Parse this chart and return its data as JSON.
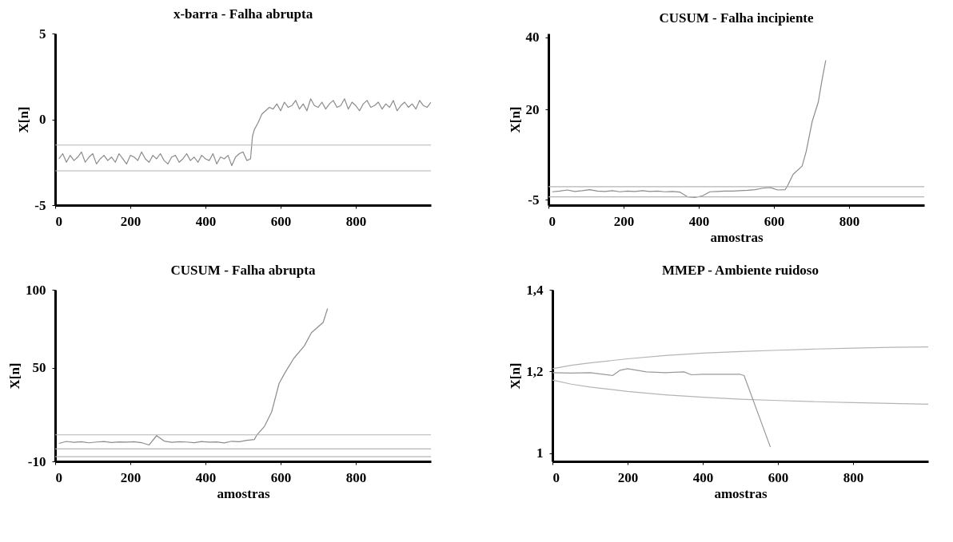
{
  "chart_data": [
    {
      "type": "line",
      "title": "x-barra - Falha abrupta",
      "ylabel": "X[n]",
      "xlim": [
        0,
        1000
      ],
      "xticks": [
        0,
        200,
        400,
        600,
        800
      ],
      "ylim": [
        -5,
        5
      ],
      "yticks": [
        -5,
        0,
        5
      ],
      "series": [
        {
          "color": "#8c8c8c",
          "x": [
            10,
            20,
            30,
            40,
            50,
            60,
            70,
            80,
            90,
            100,
            110,
            120,
            130,
            140,
            150,
            160,
            170,
            180,
            190,
            200,
            210,
            220,
            230,
            240,
            250,
            260,
            270,
            280,
            290,
            300,
            310,
            320,
            330,
            340,
            350,
            360,
            370,
            380,
            390,
            400,
            410,
            420,
            430,
            440,
            450,
            460,
            470,
            480,
            490,
            500,
            510,
            520,
            525,
            530,
            540,
            550,
            560,
            570,
            580,
            590,
            600,
            610,
            620,
            630,
            640,
            650,
            660,
            670,
            680,
            690,
            700,
            710,
            720,
            730,
            740,
            750,
            760,
            770,
            780,
            790,
            800,
            810,
            820,
            830,
            840,
            850,
            860,
            870,
            880,
            890,
            900,
            910,
            920,
            930,
            940,
            950,
            960,
            970,
            980,
            990,
            1000
          ],
          "values": [
            -2.3,
            -2.0,
            -2.5,
            -2.1,
            -2.4,
            -2.2,
            -1.9,
            -2.5,
            -2.2,
            -2.0,
            -2.6,
            -2.3,
            -2.1,
            -2.4,
            -2.2,
            -2.5,
            -2.0,
            -2.3,
            -2.6,
            -2.1,
            -2.2,
            -2.4,
            -1.9,
            -2.3,
            -2.5,
            -2.1,
            -2.3,
            -2.0,
            -2.4,
            -2.6,
            -2.2,
            -2.1,
            -2.5,
            -2.3,
            -2.0,
            -2.4,
            -2.2,
            -2.5,
            -2.1,
            -2.3,
            -2.4,
            -2.0,
            -2.6,
            -2.2,
            -2.3,
            -2.1,
            -2.7,
            -2.2,
            -2.0,
            -1.9,
            -2.4,
            -2.3,
            -1.0,
            -0.6,
            -0.2,
            0.3,
            0.5,
            0.7,
            0.6,
            0.9,
            0.5,
            1.0,
            0.7,
            0.8,
            1.1,
            0.6,
            0.9,
            0.5,
            1.2,
            0.8,
            0.7,
            1.0,
            0.6,
            0.9,
            1.1,
            0.7,
            0.8,
            1.2,
            0.6,
            1.0,
            0.8,
            0.5,
            0.9,
            1.1,
            0.7,
            0.8,
            1.0,
            0.6,
            0.9,
            0.7,
            1.1,
            0.5,
            0.8,
            1.0,
            0.7,
            0.9,
            0.6,
            1.1,
            0.8,
            0.7,
            1.0
          ]
        }
      ],
      "ref_lines": [
        {
          "axis": "y",
          "value": -1.5,
          "color": "#b4b4b4"
        },
        {
          "axis": "y",
          "value": -3.0,
          "color": "#b4b4b4"
        }
      ]
    },
    {
      "type": "line",
      "title": "CUSUM - Falha incipiente",
      "xlabel": "amostras",
      "ylabel": "X[n]",
      "xlim": [
        0,
        1000
      ],
      "xticks": [
        0,
        200,
        400,
        600,
        800
      ],
      "ylim": [
        -6.5,
        41
      ],
      "yticks": [
        -5,
        20,
        40
      ],
      "series": [
        {
          "color": "#8c8c8c",
          "x": [
            10,
            30,
            50,
            70,
            90,
            110,
            130,
            150,
            170,
            190,
            210,
            230,
            250,
            270,
            290,
            310,
            330,
            350,
            370,
            390,
            410,
            430,
            450,
            470,
            490,
            510,
            530,
            550,
            570,
            590,
            610,
            630,
            635,
            651,
            675,
            686,
            702,
            718,
            729,
            738
          ],
          "values": [
            -2.8,
            -2.6,
            -2.3,
            -2.7,
            -2.5,
            -2.2,
            -2.6,
            -2.7,
            -2.5,
            -2.8,
            -2.6,
            -2.7,
            -2.5,
            -2.7,
            -2.6,
            -2.8,
            -2.7,
            -2.9,
            -4.2,
            -4.4,
            -3.9,
            -2.8,
            -2.7,
            -2.6,
            -2.6,
            -2.5,
            -2.4,
            -2.2,
            -1.8,
            -1.6,
            -2.3,
            -2.2,
            -1.4,
            2.0,
            4.3,
            8.4,
            16.7,
            22,
            28.7,
            33.6
          ]
        }
      ],
      "ref_lines": [
        {
          "axis": "y",
          "value": -1.4,
          "color": "#b4b4b4"
        },
        {
          "axis": "y",
          "value": -4.2,
          "color": "#b4b4b4"
        }
      ]
    },
    {
      "type": "line",
      "title": "CUSUM - Falha abrupta",
      "xlabel": "amostras",
      "ylabel": "X[n]",
      "xlim": [
        0,
        1000
      ],
      "xticks": [
        0,
        200,
        400,
        600,
        800
      ],
      "ylim": [
        -10,
        100
      ],
      "yticks": [
        -10,
        50,
        100
      ],
      "series": [
        {
          "color": "#8c8c8c",
          "x": [
            10,
            30,
            50,
            70,
            90,
            110,
            130,
            150,
            170,
            190,
            210,
            230,
            250,
            270,
            290,
            310,
            330,
            350,
            370,
            390,
            410,
            430,
            450,
            470,
            490,
            510,
            530,
            537,
            557,
            576,
            596,
            612,
            635,
            663,
            682,
            713,
            725
          ],
          "values": [
            1.5,
            2.8,
            2.2,
            2.6,
            1.9,
            2.4,
            2.7,
            2.1,
            2.5,
            2.3,
            2.6,
            2.0,
            0.5,
            6.5,
            3.0,
            2.2,
            2.6,
            2.4,
            2.0,
            2.7,
            2.3,
            2.5,
            1.8,
            2.9,
            2.6,
            3.5,
            4.0,
            7,
            12.5,
            21.6,
            40,
            47,
            56,
            64,
            72.5,
            79,
            88
          ]
        }
      ],
      "ref_lines": [
        {
          "axis": "y",
          "value": 7,
          "color": "#b4b4b4"
        },
        {
          "axis": "y",
          "value": -2,
          "color": "#b4b4b4"
        },
        {
          "axis": "y",
          "value": -7,
          "color": "#b4b4b4"
        }
      ]
    },
    {
      "type": "line",
      "title": "MMEP - Ambiente ruidoso",
      "xlabel": "amostras",
      "ylabel": "X[n]",
      "xlim": [
        0,
        1000
      ],
      "xticks": [
        0,
        200,
        400,
        600,
        800
      ],
      "ylim": [
        0.98,
        1.4
      ],
      "yticks": [
        1,
        {
          "value": 1.2,
          "label": "1,2"
        },
        {
          "value": 1.4,
          "label": "1,4"
        }
      ],
      "series": [
        {
          "color": "#b4b4b4",
          "x": [
            0,
            50,
            100,
            200,
            300,
            400,
            500,
            600,
            700,
            800,
            900,
            1000
          ],
          "values": [
            1.207,
            1.215,
            1.221,
            1.231,
            1.239,
            1.245,
            1.249,
            1.252,
            1.255,
            1.257,
            1.259,
            1.26
          ]
        },
        {
          "color": "#b4b4b4",
          "x": [
            0,
            50,
            100,
            200,
            300,
            400,
            500,
            600,
            700,
            800,
            900,
            1000
          ],
          "values": [
            1.179,
            1.169,
            1.162,
            1.151,
            1.143,
            1.137,
            1.132,
            1.129,
            1.126,
            1.124,
            1.122,
            1.12
          ]
        },
        {
          "color": "#999999",
          "x": [
            0,
            50,
            100,
            160,
            180,
            200,
            250,
            300,
            350,
            370,
            400,
            500,
            510,
            580
          ],
          "values": [
            1.197,
            1.196,
            1.197,
            1.19,
            1.203,
            1.207,
            1.199,
            1.197,
            1.199,
            1.192,
            1.193,
            1.193,
            1.19,
            1.015
          ]
        }
      ]
    }
  ]
}
